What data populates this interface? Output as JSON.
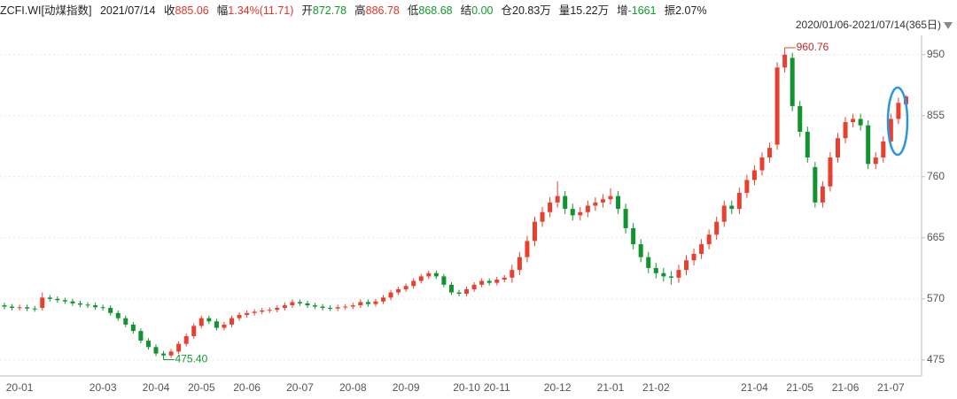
{
  "header": {
    "symbol": "ZCFI.WI[动煤指数]",
    "date": "2021/07/14",
    "items": [
      {
        "label": "收",
        "value": "885.06",
        "color": "#e0352b"
      },
      {
        "label": "幅",
        "value": "1.34%(11.71)",
        "color": "#e0352b"
      },
      {
        "label": "开",
        "value": "872.78",
        "color": "#119a2e"
      },
      {
        "label": "高",
        "value": "886.78",
        "color": "#e0352b"
      },
      {
        "label": "低",
        "value": "868.68",
        "color": "#119a2e"
      },
      {
        "label": "结",
        "value": "0.00",
        "color": "#119a2e"
      },
      {
        "label": "仓",
        "value": "20.83万",
        "color": "#222222"
      },
      {
        "label": "量",
        "value": "15.22万",
        "color": "#222222"
      },
      {
        "label": "增",
        "value": "-1661",
        "color": "#119a2e"
      },
      {
        "label": "振",
        "value": "2.07%",
        "color": "#222222"
      }
    ],
    "range": "2020/01/06-2021/07/14(365日)"
  },
  "chart_data": {
    "type": "candlestick",
    "up_color": "#e8402f",
    "down_color": "#11932f",
    "grid": true,
    "ylim": [
      450,
      980
    ],
    "yticks": [
      475,
      570,
      665,
      760,
      855,
      950
    ],
    "max_label": "960.76",
    "min_label": "475.40",
    "categories": [
      null,
      null,
      "20-01",
      null,
      null,
      null,
      null,
      null,
      null,
      null,
      null,
      null,
      null,
      "20-03",
      null,
      null,
      null,
      null,
      null,
      null,
      "20-04",
      null,
      null,
      null,
      null,
      null,
      "20-05",
      null,
      null,
      null,
      null,
      null,
      "20-06",
      null,
      null,
      null,
      null,
      null,
      null,
      "20-07",
      null,
      null,
      null,
      null,
      null,
      null,
      "20-08",
      null,
      null,
      null,
      null,
      null,
      null,
      "20-09",
      null,
      null,
      null,
      null,
      null,
      null,
      null,
      "20-10",
      null,
      null,
      null,
      "20-11",
      null,
      null,
      null,
      null,
      null,
      null,
      null,
      "20-12",
      null,
      null,
      null,
      null,
      null,
      null,
      "21-01",
      null,
      null,
      null,
      null,
      null,
      "21-02",
      null,
      null,
      null,
      null,
      null,
      null,
      null,
      null,
      null,
      null,
      null,
      null,
      "21-04",
      null,
      null,
      null,
      null,
      null,
      "21-05",
      null,
      null,
      null,
      null,
      null,
      "21-06",
      null,
      null,
      null,
      null,
      null,
      "21-07",
      null,
      null
    ],
    "open": [
      560,
      558,
      556,
      557,
      555,
      556,
      572,
      570,
      568,
      566,
      563,
      561,
      560,
      557,
      556,
      548,
      540,
      530,
      520,
      505,
      495,
      485,
      482,
      488,
      500,
      512,
      528,
      540,
      535,
      525,
      530,
      540,
      545,
      548,
      550,
      552,
      553,
      556,
      560,
      565,
      563,
      560,
      558,
      556,
      555,
      557,
      558,
      560,
      565,
      562,
      566,
      572,
      580,
      585,
      590,
      598,
      605,
      610,
      605,
      592,
      580,
      578,
      585,
      592,
      598,
      595,
      600,
      603,
      615,
      635,
      660,
      690,
      705,
      720,
      730,
      710,
      700,
      705,
      715,
      720,
      725,
      730,
      710,
      680,
      655,
      635,
      618,
      610,
      605,
      603,
      615,
      630,
      640,
      655,
      670,
      690,
      715,
      710,
      735,
      755,
      770,
      790,
      810,
      930,
      945,
      870,
      830,
      775,
      720,
      745,
      790,
      820,
      845,
      850,
      840,
      780,
      790,
      815,
      850,
      872.78
    ],
    "high": [
      564,
      562,
      561,
      561,
      559,
      580,
      576,
      574,
      572,
      570,
      567,
      565,
      564,
      561,
      560,
      552,
      544,
      534,
      524,
      509,
      499,
      489,
      492,
      504,
      516,
      532,
      544,
      544,
      539,
      534,
      544,
      549,
      552,
      554,
      556,
      557,
      560,
      564,
      569,
      569,
      567,
      564,
      562,
      560,
      561,
      562,
      564,
      569,
      569,
      570,
      576,
      584,
      589,
      594,
      602,
      609,
      614,
      614,
      609,
      596,
      584,
      589,
      596,
      602,
      602,
      604,
      607,
      623,
      643,
      668,
      698,
      713,
      728,
      753,
      738,
      718,
      713,
      723,
      728,
      733,
      742,
      738,
      718,
      688,
      663,
      643,
      626,
      618,
      613,
      623,
      638,
      648,
      663,
      678,
      698,
      723,
      723,
      743,
      763,
      778,
      798,
      813,
      938,
      960.76,
      953,
      878,
      838,
      783,
      753,
      798,
      828,
      853,
      858,
      858,
      848,
      798,
      823,
      858,
      883,
      886.78
    ],
    "low": [
      554,
      552,
      552,
      551,
      550,
      552,
      566,
      564,
      562,
      559,
      557,
      556,
      553,
      552,
      544,
      536,
      526,
      516,
      501,
      491,
      481,
      475.4,
      478,
      484,
      496,
      508,
      524,
      531,
      521,
      521,
      526,
      536,
      541,
      544,
      546,
      548,
      549,
      552,
      556,
      559,
      556,
      554,
      552,
      551,
      551,
      553,
      554,
      556,
      558,
      558,
      562,
      568,
      576,
      581,
      586,
      594,
      601,
      601,
      588,
      576,
      574,
      574,
      581,
      588,
      591,
      591,
      596,
      595,
      607,
      627,
      652,
      682,
      697,
      712,
      702,
      692,
      692,
      697,
      707,
      712,
      717,
      702,
      672,
      647,
      627,
      610,
      602,
      597,
      592,
      595,
      607,
      622,
      632,
      647,
      662,
      682,
      702,
      702,
      727,
      747,
      762,
      782,
      802,
      922,
      862,
      822,
      782,
      712,
      712,
      737,
      782,
      812,
      837,
      832,
      772,
      772,
      782,
      807,
      842,
      868.68
    ],
    "close": [
      558,
      556,
      557,
      555,
      554,
      572,
      570,
      568,
      566,
      563,
      561,
      560,
      557,
      556,
      548,
      540,
      530,
      520,
      505,
      495,
      485,
      482,
      488,
      500,
      512,
      528,
      540,
      535,
      525,
      530,
      540,
      545,
      548,
      550,
      552,
      553,
      556,
      560,
      565,
      563,
      560,
      558,
      556,
      555,
      557,
      558,
      560,
      565,
      562,
      566,
      572,
      580,
      585,
      590,
      598,
      605,
      610,
      605,
      592,
      580,
      578,
      585,
      592,
      598,
      595,
      600,
      603,
      615,
      635,
      660,
      690,
      705,
      720,
      730,
      710,
      700,
      705,
      715,
      720,
      725,
      730,
      710,
      680,
      655,
      635,
      618,
      610,
      605,
      603,
      615,
      630,
      640,
      655,
      670,
      690,
      715,
      710,
      735,
      755,
      770,
      790,
      805,
      930,
      950,
      870,
      830,
      790,
      720,
      745,
      790,
      820,
      845,
      850,
      840,
      780,
      790,
      815,
      850,
      875,
      885.06
    ]
  }
}
